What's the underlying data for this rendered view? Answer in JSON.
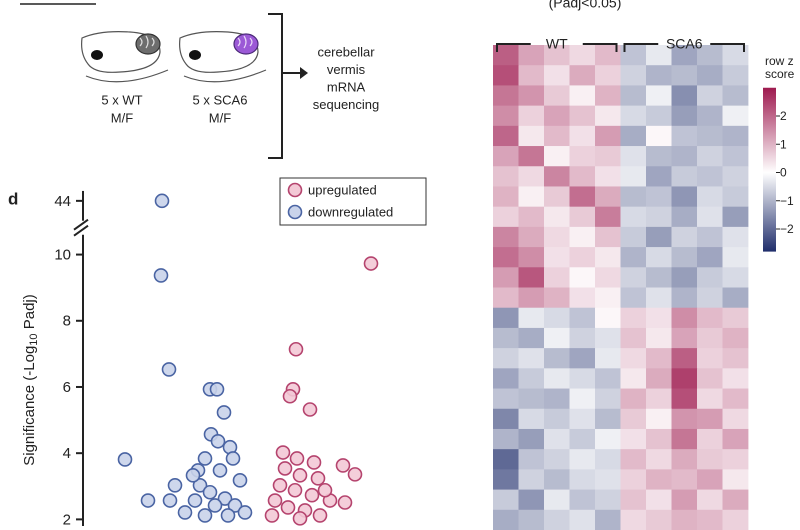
{
  "panel_label": "d",
  "schematic": {
    "groups": [
      {
        "label": "5 x WT",
        "sub": "M/F"
      },
      {
        "label": "5 x SCA6",
        "sub": "M/F"
      }
    ],
    "method": [
      "cerebellar",
      "vermis",
      "mRNA",
      "sequencing"
    ]
  },
  "chart_data": [
    {
      "type": "scatter",
      "ylabel": [
        "Significance (-Log",
        "10",
        " Padj)"
      ],
      "xlim": [
        -1.75,
        2.0
      ],
      "ylim": [
        1.8,
        44.3
      ],
      "ybreak": [
        10.6,
        43.4
      ],
      "yticks": [
        2,
        4,
        6,
        8,
        10,
        44
      ],
      "legend": "top-right",
      "series": [
        {
          "name": "upregulated",
          "color": "#b5446e",
          "fill": "#f3c9d6",
          "x": [
            1.16,
            0.41,
            0.38,
            0.35,
            0.55,
            1.0,
            0.88,
            0.59,
            0.28,
            0.42,
            0.3,
            0.45,
            0.63,
            0.25,
            0.4,
            0.57,
            0.75,
            0.2,
            0.33,
            0.5,
            0.65,
            0.17,
            0.45,
            0.7,
            0.9
          ],
          "values": [
            9.73,
            7.14,
            5.93,
            5.72,
            5.32,
            3.36,
            3.63,
            3.72,
            4.02,
            3.84,
            3.54,
            3.33,
            3.24,
            3.03,
            2.88,
            2.73,
            2.57,
            2.57,
            2.36,
            2.27,
            2.12,
            2.12,
            2.03,
            2.88,
            2.51
          ]
        },
        {
          "name": "downregulated",
          "color": "#4a64a3",
          "fill": "#c9d3ea",
          "x": [
            -0.93,
            -0.94,
            -0.86,
            -1.3,
            -0.45,
            -0.38,
            -0.31,
            -0.44,
            -0.37,
            -0.25,
            -0.22,
            -0.5,
            -0.57,
            -0.8,
            -0.55,
            -0.35,
            -0.15,
            -0.45,
            -0.6,
            -0.3,
            -0.2,
            -0.7,
            -0.5,
            -0.27,
            -0.1,
            -0.4,
            -0.62,
            -1.07,
            -0.85
          ],
          "values": [
            44,
            9.37,
            6.53,
            3.81,
            5.93,
            5.93,
            5.23,
            4.57,
            4.36,
            4.18,
            3.84,
            3.84,
            3.48,
            3.03,
            3.03,
            3.48,
            3.18,
            2.82,
            2.57,
            2.63,
            2.42,
            2.21,
            2.12,
            2.12,
            2.21,
            2.42,
            3.33,
            2.57,
            2.57
          ]
        }
      ]
    },
    {
      "type": "heatmap",
      "title": "(Padj<0.05)",
      "groups": [
        {
          "name": "WT",
          "columns": 5
        },
        {
          "name": "SCA6",
          "columns": 5
        }
      ],
      "colormap": [
        "#1f2d6b",
        "#ffffff",
        "#9e1a4f"
      ],
      "colorbar_label": [
        "row z",
        "score"
      ],
      "clim": [
        -2.8,
        3.0
      ],
      "cticks": [
        2,
        1,
        0,
        {
          "value": -1,
          "label": "−1"
        },
        {
          "value": -2,
          "label": "−2"
        }
      ],
      "values": [
        [
          2.1,
          1.2,
          0.8,
          0.5,
          0.9,
          -0.8,
          -0.3,
          -1.2,
          -0.9,
          -0.5
        ],
        [
          2.3,
          0.9,
          0.4,
          1.1,
          0.6,
          -0.6,
          -1.0,
          -0.9,
          -1.1,
          -0.7
        ],
        [
          1.8,
          1.4,
          0.7,
          0.2,
          1.0,
          -0.9,
          -0.2,
          -1.5,
          -0.6,
          -0.9
        ],
        [
          1.5,
          0.6,
          1.2,
          0.8,
          0.3,
          -0.5,
          -0.7,
          -1.3,
          -1.0,
          -0.2
        ],
        [
          2.0,
          0.3,
          0.9,
          0.4,
          1.3,
          -1.1,
          0.1,
          -0.8,
          -0.9,
          -1.0
        ],
        [
          1.2,
          1.8,
          0.2,
          0.6,
          0.7,
          -0.4,
          -0.9,
          -1.0,
          -0.6,
          -0.8
        ],
        [
          0.8,
          0.5,
          1.6,
          0.9,
          0.4,
          -0.3,
          -1.2,
          -0.7,
          -0.8,
          -0.6
        ],
        [
          1.0,
          0.2,
          0.7,
          1.9,
          1.1,
          -0.9,
          -0.8,
          -1.4,
          -0.5,
          -0.7
        ],
        [
          0.6,
          0.9,
          0.3,
          0.7,
          1.7,
          -0.5,
          -0.6,
          -1.1,
          -0.4,
          -1.3
        ],
        [
          1.6,
          1.1,
          0.5,
          0.2,
          0.8,
          -0.7,
          -1.3,
          -0.6,
          -0.8,
          -0.4
        ],
        [
          1.9,
          1.5,
          0.4,
          0.6,
          0.3,
          -1.0,
          -0.5,
          -0.9,
          -1.2,
          -0.3
        ],
        [
          1.3,
          2.2,
          0.6,
          0.1,
          0.5,
          -0.6,
          -0.9,
          -1.3,
          -0.7,
          -0.5
        ],
        [
          0.9,
          1.3,
          1.0,
          0.4,
          0.2,
          -0.8,
          -0.4,
          -1.0,
          -0.6,
          -1.1
        ],
        [
          -1.4,
          -0.3,
          -0.5,
          -0.8,
          0.1,
          0.6,
          0.4,
          1.5,
          0.9,
          0.7
        ],
        [
          -0.9,
          -1.1,
          -0.2,
          -0.6,
          -0.4,
          0.8,
          0.3,
          1.2,
          0.7,
          1.0
        ],
        [
          -0.6,
          -0.4,
          -0.9,
          -1.2,
          -0.3,
          0.5,
          0.9,
          2.1,
          0.6,
          0.8
        ],
        [
          -1.2,
          -0.7,
          -0.3,
          -0.5,
          -0.8,
          0.3,
          1.1,
          2.5,
          0.8,
          0.4
        ],
        [
          -0.8,
          -0.9,
          -1.0,
          -0.2,
          -0.6,
          1.0,
          0.6,
          2.3,
          0.5,
          0.9
        ],
        [
          -1.6,
          -0.5,
          -0.7,
          -0.4,
          -0.9,
          0.7,
          0.2,
          1.4,
          1.3,
          0.5
        ],
        [
          -1.0,
          -1.3,
          -0.4,
          -0.7,
          -0.2,
          0.4,
          0.8,
          1.8,
          0.6,
          1.2
        ],
        [
          -2.0,
          -0.8,
          -0.6,
          -0.3,
          -0.5,
          0.9,
          0.5,
          1.1,
          0.7,
          0.6
        ],
        [
          -1.8,
          -0.6,
          -0.9,
          -0.5,
          -0.4,
          0.6,
          1.0,
          0.9,
          1.2,
          0.3
        ],
        [
          -0.7,
          -1.4,
          -0.3,
          -0.8,
          -0.6,
          0.8,
          0.4,
          1.3,
          0.5,
          1.1
        ],
        [
          -1.1,
          -0.9,
          -0.6,
          -0.4,
          -1.0,
          0.5,
          0.7,
          1.0,
          0.9,
          0.6
        ]
      ]
    }
  ]
}
